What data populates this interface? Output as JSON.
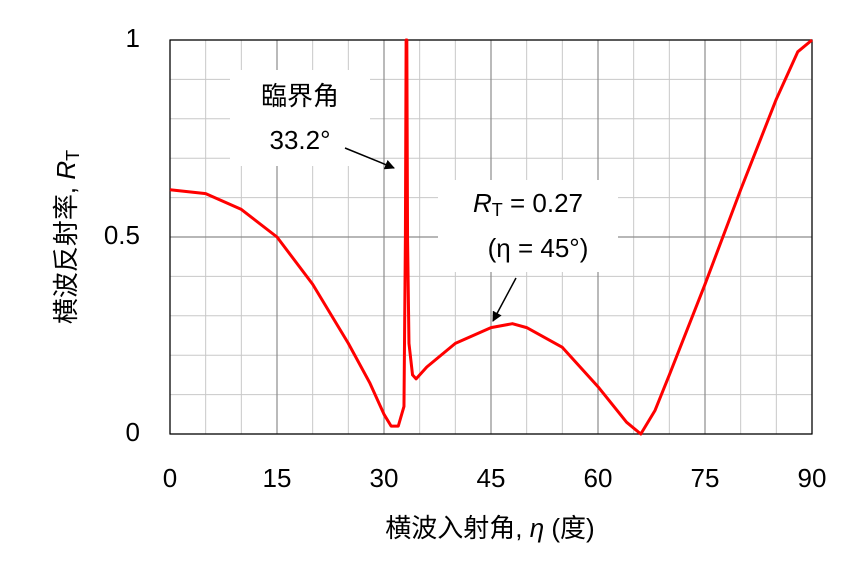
{
  "chart_data": {
    "type": "line",
    "y_label": {
      "text": "横波反射率, ",
      "symbol": "R",
      "subscript": "T"
    },
    "x_label": {
      "text": "横波入射角, ",
      "symbol": "η",
      "unit": " (度)"
    },
    "x": [
      0,
      5,
      10,
      15,
      20,
      25,
      28,
      30,
      31,
      32,
      32.8,
      33.0,
      33.1,
      33.2,
      33.3,
      33.5,
      34.0,
      34.5,
      36,
      40,
      45,
      48,
      50,
      55,
      60,
      64,
      66,
      68,
      70,
      75,
      80,
      85,
      88,
      90
    ],
    "values": [
      0.62,
      0.61,
      0.57,
      0.5,
      0.38,
      0.23,
      0.13,
      0.05,
      0.02,
      0.02,
      0.07,
      0.5,
      1.0,
      1.0,
      0.5,
      0.23,
      0.15,
      0.14,
      0.17,
      0.23,
      0.27,
      0.28,
      0.27,
      0.22,
      0.12,
      0.03,
      0.0,
      0.06,
      0.15,
      0.38,
      0.62,
      0.85,
      0.97,
      1.0
    ],
    "color": "#ff0000",
    "xlim": [
      0,
      90
    ],
    "xticks": [
      0,
      15,
      30,
      45,
      60,
      75,
      90
    ],
    "ylim": [
      0,
      1
    ],
    "yticks": [
      0,
      0.5,
      1
    ],
    "grid": true,
    "annotations": [
      {
        "line1": "臨界角",
        "line2": "33.2°"
      },
      {
        "symbol": "R",
        "subscript": "T",
        "text": " = 0.27",
        "line2": "(η = 45°)"
      }
    ]
  }
}
